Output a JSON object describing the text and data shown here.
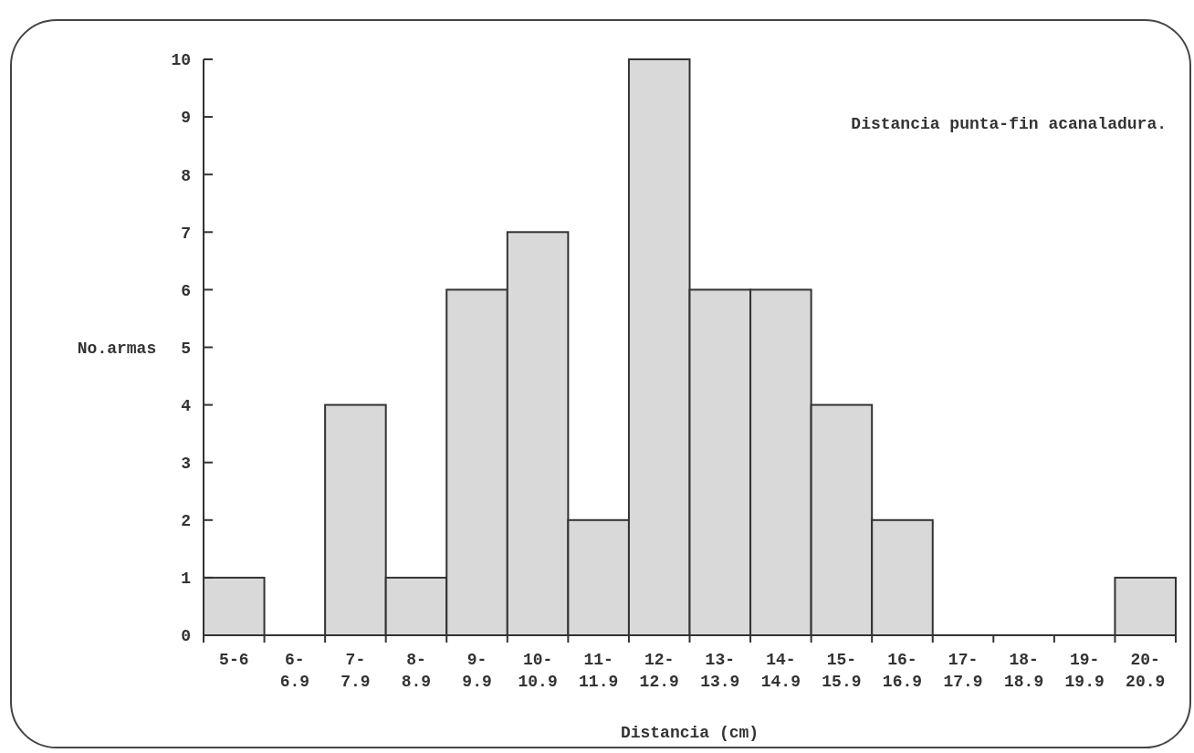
{
  "chart_data": {
    "type": "bar",
    "title": "Distancia punta-fin acanaladura.",
    "xlabel": "Distancia (cm)",
    "ylabel": "No.armas",
    "categories": [
      "5-6",
      "6-\n6.9",
      "7-\n7.9",
      "8-\n8.9",
      "9-\n9.9",
      "10-\n10.9",
      "11-\n11.9",
      "12-\n12.9",
      "13-\n13.9",
      "14-\n14.9",
      "15-\n15.9",
      "16-\n16.9",
      "17-\n17.9",
      "18-\n18.9",
      "19-\n19.9",
      "20-\n20.9"
    ],
    "values": [
      1,
      0,
      4,
      1,
      6,
      7,
      2,
      10,
      6,
      6,
      4,
      2,
      0,
      0,
      0,
      1
    ],
    "color": "#d9d9d9",
    "ylim": [
      0,
      10
    ],
    "yticks": [
      0,
      1,
      2,
      3,
      4,
      5,
      6,
      7,
      8,
      9,
      10
    ],
    "grid": false
  }
}
